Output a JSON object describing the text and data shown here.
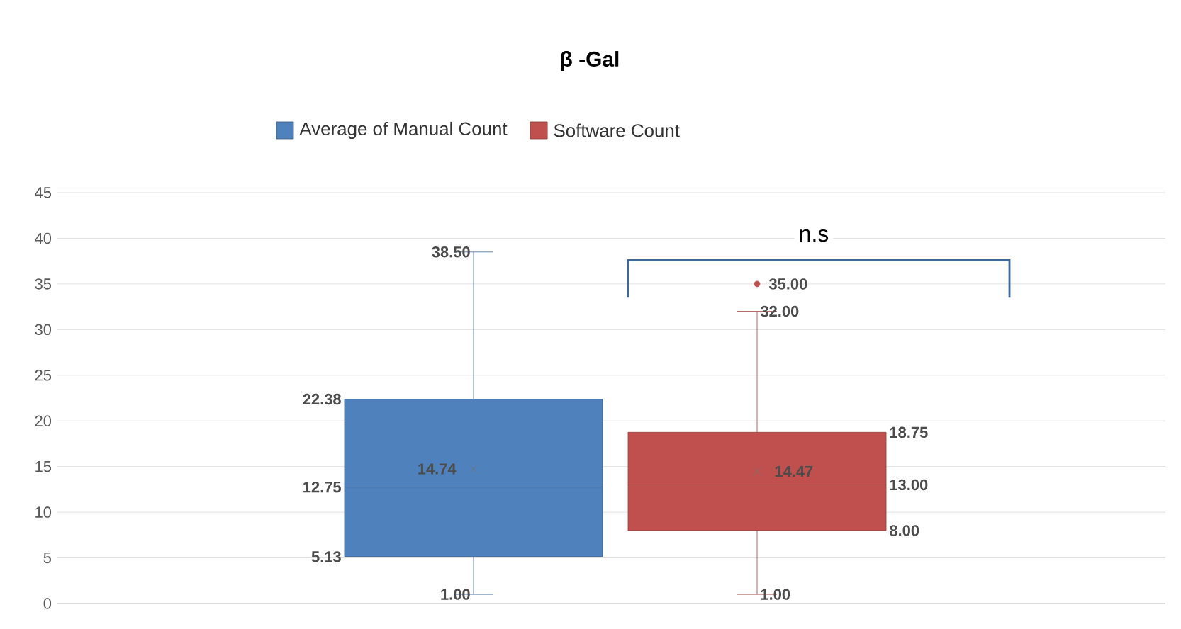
{
  "chart_data": {
    "type": "box",
    "title": "β -Gal",
    "categories": [
      null,
      null
    ],
    "series": [
      {
        "name": "Average of Manual Count",
        "color": "#4f81bd",
        "boxes": [
          {
            "low": 1.0,
            "q1": 5.13,
            "median": 12.75,
            "q3": 22.38,
            "high": 38.5,
            "mean": 14.74
          },
          null
        ]
      },
      {
        "name": "Software  Count",
        "color": "#c0504d",
        "boxes": [
          null,
          {
            "low": 1.0,
            "q1": 8.0,
            "median": 13.0,
            "q3": 18.75,
            "high": 32.0,
            "mean": 14.47,
            "outliers": [
              35.0
            ]
          }
        ]
      }
    ],
    "ylim": [
      0,
      45
    ],
    "yticks": [
      0,
      5,
      10,
      15,
      20,
      25,
      30,
      35,
      40,
      45
    ],
    "grid": "y",
    "legend": "top",
    "annotations": [
      "n.s",
      "38.50",
      "22.38",
      "14.74",
      "12.75",
      "5.13",
      "1.00",
      "35.00",
      "32.00",
      "18.75",
      "14.47",
      "13.00",
      "8.00",
      "1.00"
    ]
  }
}
